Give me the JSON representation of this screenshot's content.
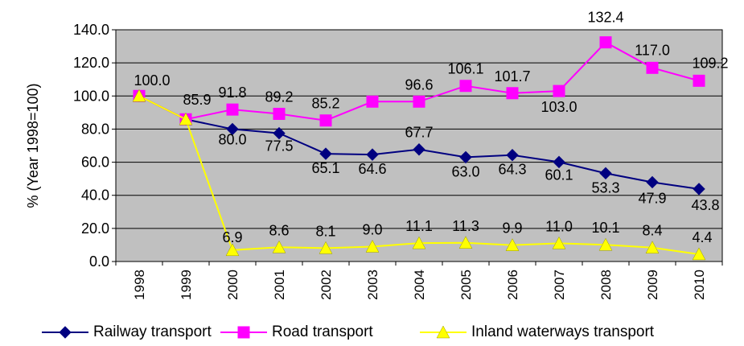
{
  "chart_data": {
    "type": "line",
    "title": "",
    "xlabel": "",
    "ylabel": "% (Year 1998=100)",
    "ylim": [
      0,
      140
    ],
    "yticks": [
      "0.0",
      "20.0",
      "40.0",
      "60.0",
      "80.0",
      "100.0",
      "120.0",
      "140.0"
    ],
    "categories": [
      "1998",
      "1999",
      "2000",
      "2001",
      "2002",
      "2003",
      "2004",
      "2005",
      "2006",
      "2007",
      "2008",
      "2009",
      "2010"
    ],
    "grid": true,
    "plot_background": "#c0c0c0",
    "legend_position": "bottom",
    "series": [
      {
        "name": "Railway transport",
        "color": "#000080",
        "marker": "diamond",
        "values": [
          100.0,
          85.9,
          80.0,
          77.5,
          65.1,
          64.6,
          67.7,
          63.0,
          64.3,
          60.1,
          53.3,
          47.9,
          43.8
        ],
        "labels": [
          "",
          "85.9",
          "80.0",
          "77.5",
          "65.1",
          "64.6",
          "67.7",
          "63.0",
          "64.3",
          "60.1",
          "53.3",
          "47.9",
          "43.8"
        ]
      },
      {
        "name": "Road transport",
        "color": "#ff00ff",
        "marker": "square",
        "values": [
          100.0,
          85.9,
          91.8,
          89.2,
          85.2,
          96.6,
          96.6,
          106.1,
          101.7,
          103.0,
          132.4,
          117.0,
          109.2
        ],
        "labels": [
          "100.0",
          "",
          "91.8",
          "89.2",
          "85.2",
          "",
          "96.6",
          "106.1",
          "101.7",
          "103.0",
          "132.4",
          "117.0",
          "109.2"
        ]
      },
      {
        "name": "Inland waterways  transport",
        "color": "#ffff00",
        "marker": "triangle",
        "values": [
          100.0,
          85.9,
          6.9,
          8.6,
          8.1,
          9.0,
          11.1,
          11.3,
          9.9,
          11.0,
          10.1,
          8.4,
          4.4
        ],
        "labels": [
          "",
          "",
          "6.9",
          "8.6",
          "8.1",
          "9.0",
          "11.1",
          "11.3",
          "9.9",
          "11.0",
          "10.1",
          "8.4",
          "4.4"
        ]
      }
    ]
  },
  "legend": {
    "items": [
      {
        "name": "Railway transport",
        "color": "#000080",
        "marker": "diamond"
      },
      {
        "name": "Road transport",
        "color": "#ff00ff",
        "marker": "square"
      },
      {
        "name": "Inland waterways  transport",
        "color": "#ffff00",
        "marker": "triangle"
      }
    ]
  }
}
